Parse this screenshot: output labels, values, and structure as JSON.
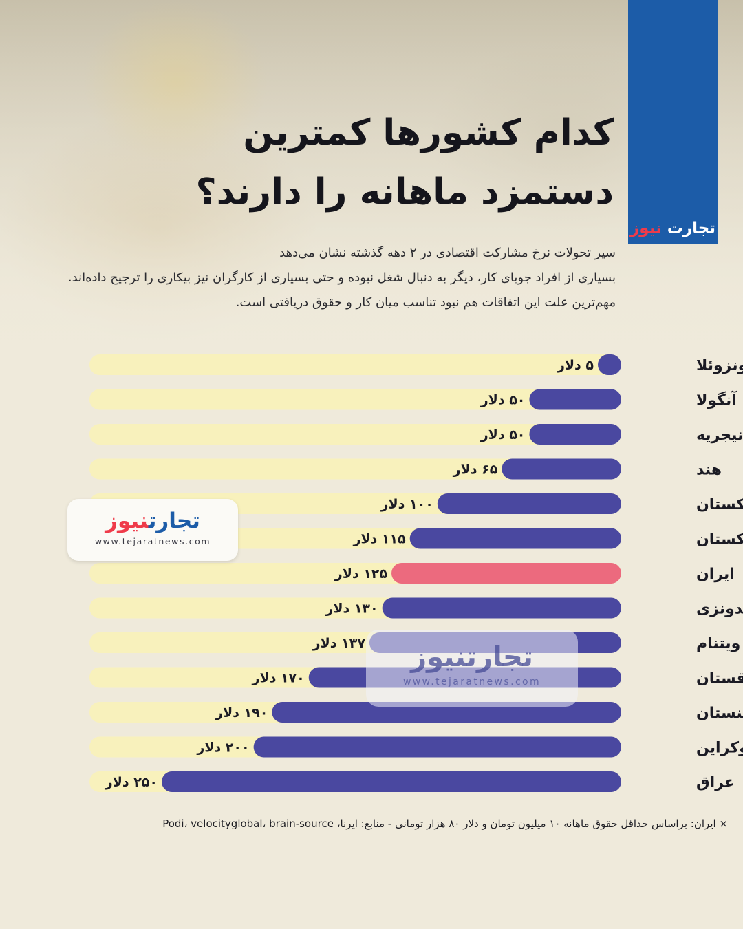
{
  "brand": {
    "name_part1": "تجارت",
    "name_part2": "نیوز",
    "url": "www.tejaratnews.com"
  },
  "title": {
    "line1": "کدام کشورها کمترین",
    "line2": "دستمزد ماهانه را دارند؟"
  },
  "description": [
    "سیر تحولات نرخ مشارکت اقتصادی در ۲ دهه گذشته نشان می‌دهد",
    "بسیاری از افراد جویای کار، دیگر به دنبال شغل نبوده و حتی بسیاری از کارگران نیز بیکاری را ترجیح داده‌اند.",
    "مهم‌ترین علت این اتفاقات هم نبود تناسب میان کار و حقوق دریافتی است."
  ],
  "footnote": "× ایران: براساس حداقل حقوق ماهانه ۱۰ میلیون تومان و دلار ۸۰ هزار تومانی - منابع: ایرنا، Podi، velocityglobal، brain-source",
  "colors": {
    "bar": "#4a48a0",
    "highlight": "#ec6a7e",
    "track": "#f8f1bc",
    "brand_blue": "#1c5ca8",
    "brand_red": "#ef3b4a"
  },
  "chart_data": {
    "type": "bar",
    "orientation": "horizontal",
    "unit": "دلار",
    "categories": [
      "ونزوئلا",
      "آنگولا",
      "نیجریه",
      "هند",
      "ازبکستان",
      "پاکستان",
      "ایران",
      "اندونزی",
      "ویتنام",
      "قزاقستان",
      "ارمنستان",
      "اوکراین",
      "عراق"
    ],
    "values": [
      5,
      50,
      50,
      65,
      100,
      115,
      125,
      130,
      137,
      170,
      190,
      200,
      250
    ],
    "value_labels": [
      "۵ دلار",
      "۵۰ دلار",
      "۵۰ دلار",
      "۶۵ دلار",
      "۱۰۰ دلار",
      "۱۱۵ دلار",
      "۱۲۵ دلار",
      "۱۳۰ دلار",
      "۱۳۷ دلار",
      "۱۷۰ دلار",
      "۱۹۰ دلار",
      "۲۰۰ دلار",
      "۲۵۰ دلار"
    ],
    "highlight": "ایران",
    "xlim": [
      0,
      250
    ],
    "grid": false,
    "legend": "none"
  }
}
